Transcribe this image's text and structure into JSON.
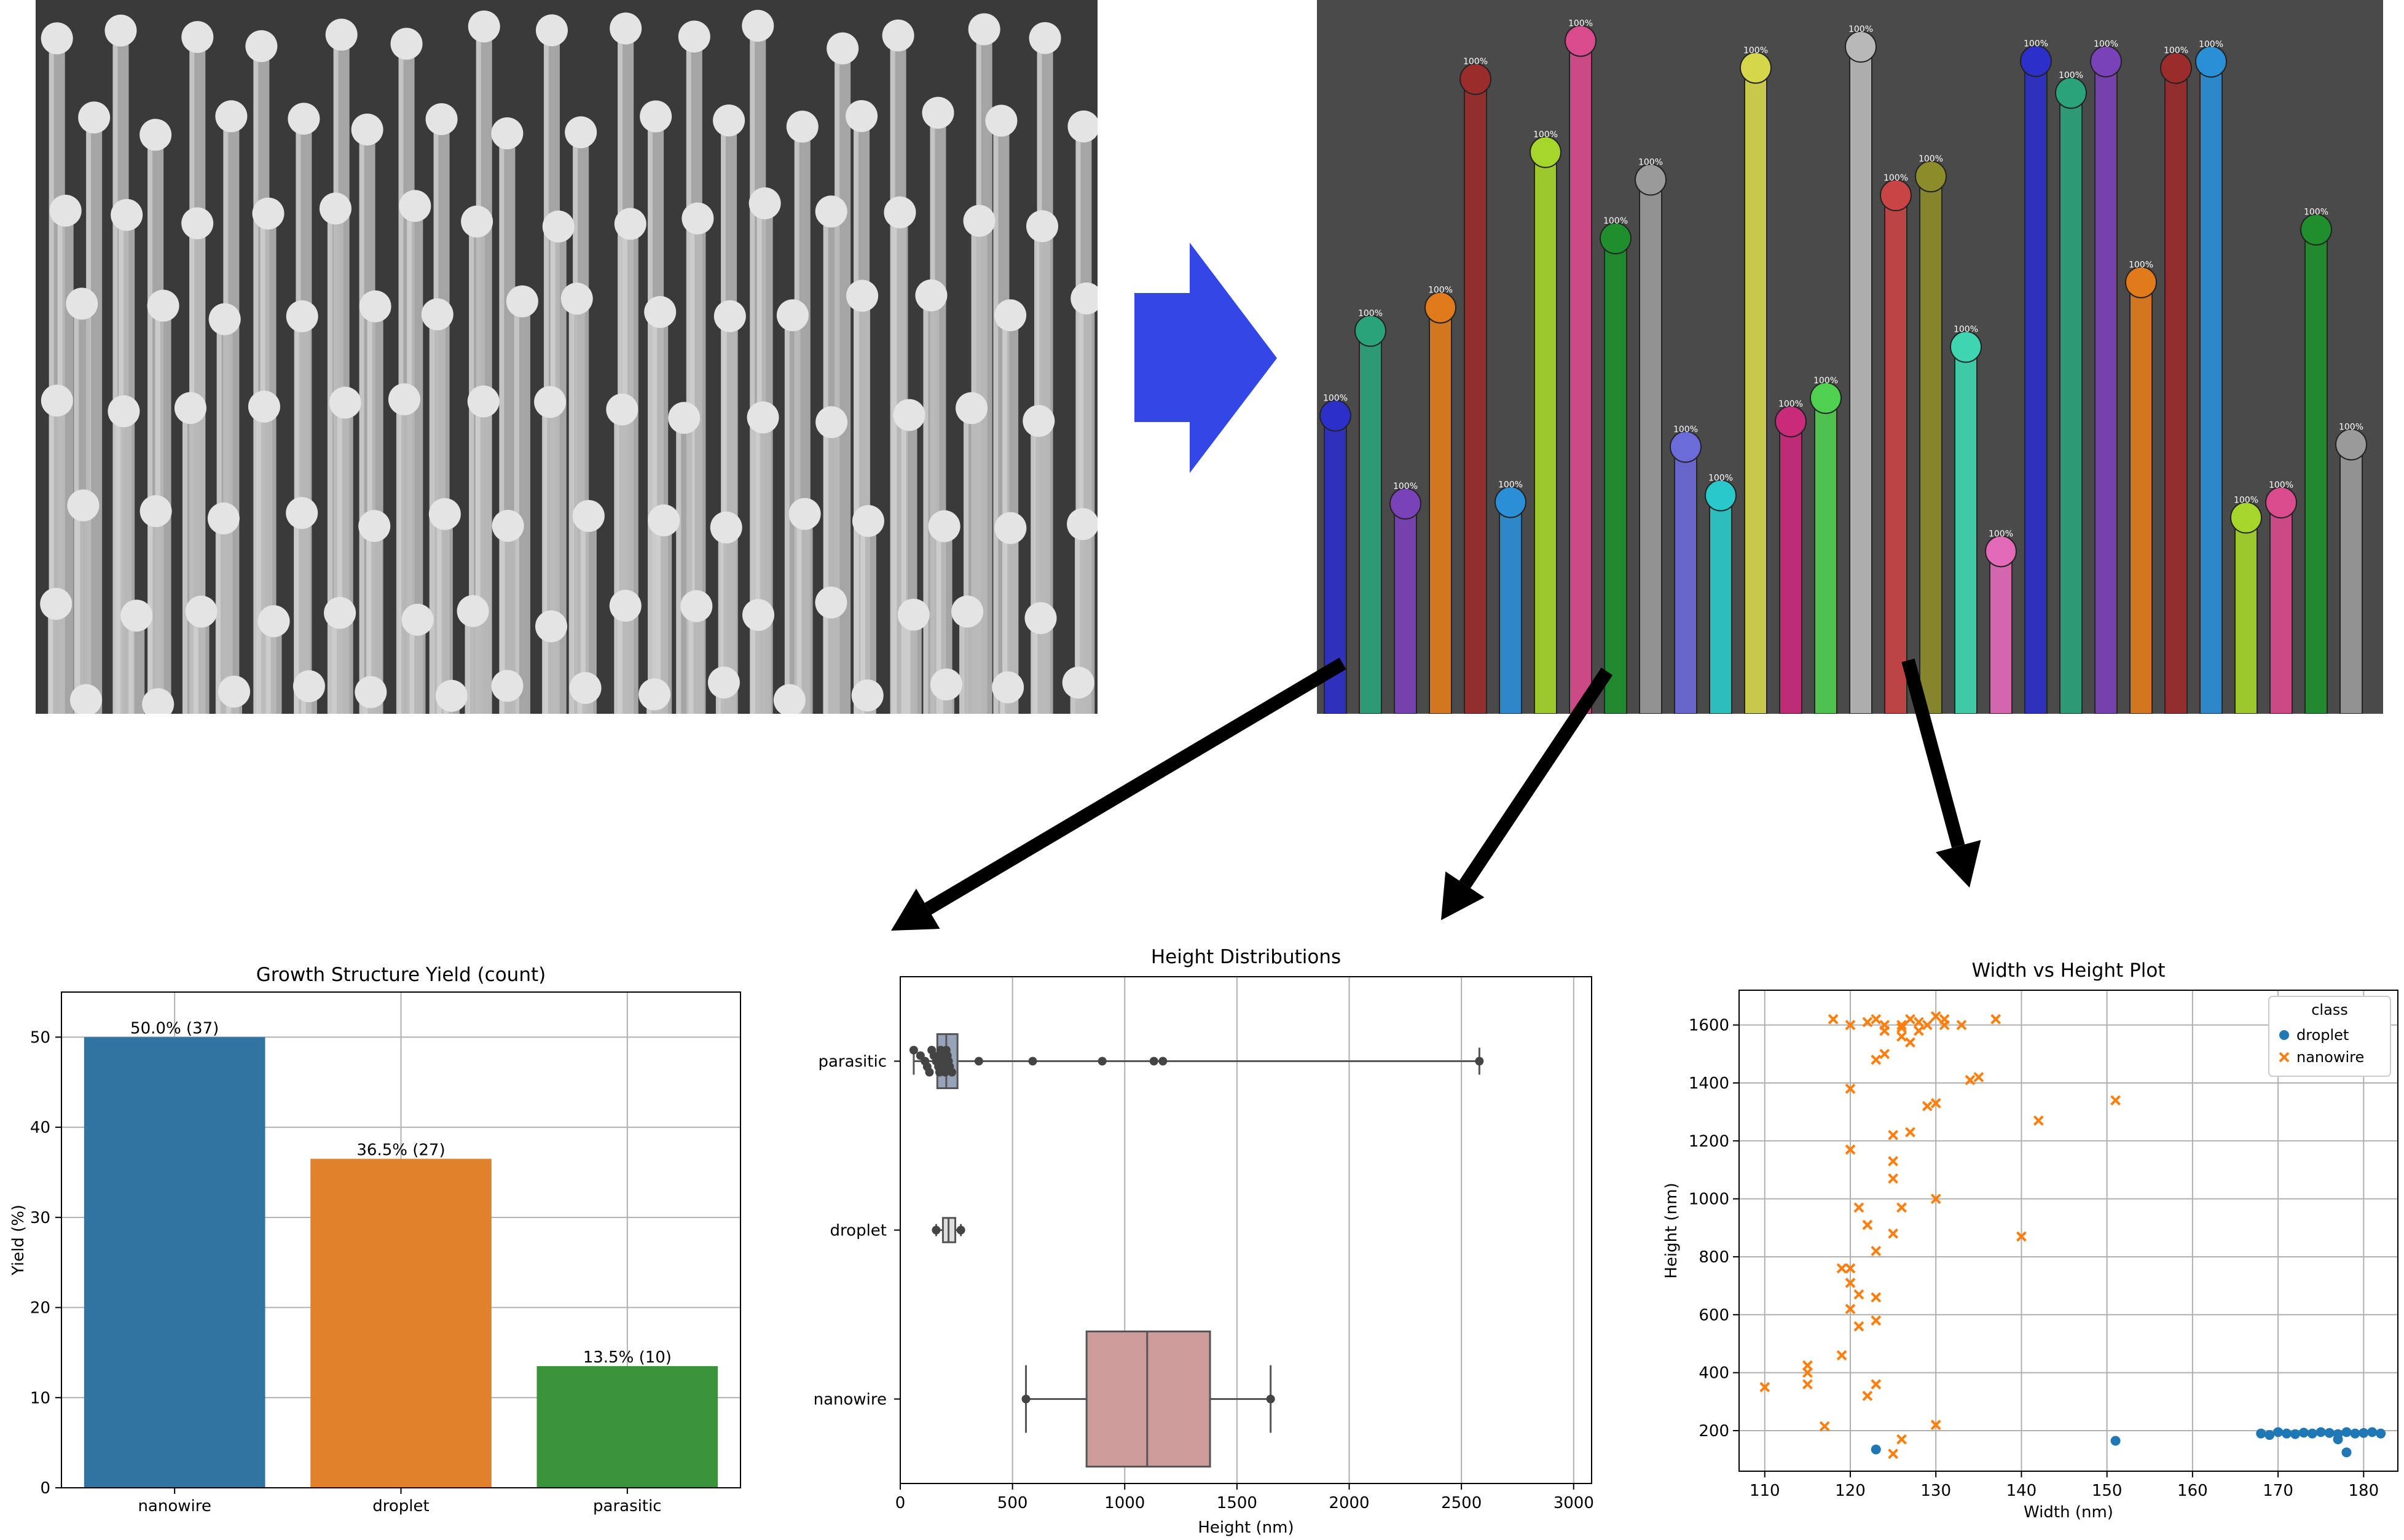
{
  "colors": {
    "sem_background": "#3a3a3a",
    "wire": "#b9b9b9",
    "droplet": "#e4e4e4",
    "process_arrow": "#3347e6",
    "flow_arrow": "#000000",
    "bar_nanowire": "#3274a1",
    "bar_droplet": "#e1812c",
    "bar_parasitic": "#3a923a",
    "box_parasitic": "#97a3b8",
    "box_droplet": "#dedede",
    "box_nanowire": "#cc9b9a",
    "swarm_point": "#444444",
    "scatter_droplet": "#1f77b4",
    "scatter_nanowire": "#ff7f0e"
  },
  "segmentation": {
    "mask_palette": [
      "#2d2fc9",
      "#2aa37a",
      "#7a42b8",
      "#e07a1b",
      "#9b2c2c",
      "#2b8fd6",
      "#a6d62a",
      "#d94b8c",
      "#1e8f2c",
      "#9a9a9a",
      "#6b6bd9",
      "#29c9c9",
      "#d6d64a",
      "#c92a7a",
      "#4fd04f",
      "#b8b8b8",
      "#c94444",
      "#8c8c2a",
      "#3dd6b0",
      "#e36ab8"
    ],
    "score_label": "100%"
  },
  "chart_data": [
    {
      "type": "bar",
      "title": "Growth Structure Yield (count)",
      "xlabel": "",
      "ylabel": "Yield (%)",
      "categories": [
        "nanowire",
        "droplet",
        "parasitic"
      ],
      "values": [
        50.0,
        36.5,
        13.5
      ],
      "data_labels": [
        "50.0% (37)",
        "36.5% (27)",
        "13.5% (10)"
      ],
      "colors": [
        "#3274a1",
        "#e1812c",
        "#3a923a"
      ],
      "ylim": [
        0,
        55
      ],
      "yticks": [
        0,
        10,
        20,
        30,
        40,
        50
      ],
      "grid": true
    },
    {
      "type": "box",
      "orientation": "horizontal",
      "title": "Height Distributions",
      "xlabel": "Height (nm)",
      "ylabel": "",
      "categories": [
        "parasitic",
        "droplet",
        "nanowire"
      ],
      "xlim": [
        0,
        3080
      ],
      "xticks": [
        0,
        500,
        1000,
        1500,
        2000,
        2500,
        3000
      ],
      "grid": true,
      "boxes": [
        {
          "name": "parasitic",
          "whislo": 60,
          "q1": 165,
          "med": 205,
          "q3": 255,
          "whishi": 2580
        },
        {
          "name": "droplet",
          "whislo": 160,
          "q1": 190,
          "med": 215,
          "q3": 245,
          "whishi": 270
        },
        {
          "name": "nanowire",
          "whislo": 560,
          "q1": 830,
          "med": 1100,
          "q3": 1380,
          "whishi": 1650
        }
      ],
      "swarm": {
        "parasitic": [
          60,
          90,
          110,
          120,
          130,
          140,
          150,
          160,
          170,
          175,
          180,
          185,
          190,
          195,
          200,
          205,
          210,
          215,
          220,
          230,
          350,
          590,
          900,
          1130,
          1170,
          2580
        ],
        "droplet": [
          160,
          270
        ],
        "nanowire": [
          560,
          1650
        ]
      }
    },
    {
      "type": "scatter",
      "title": "Width vs Height Plot",
      "xlabel": "Width (nm)",
      "ylabel": "Height (nm)",
      "xlim": [
        107,
        184
      ],
      "ylim": [
        60,
        1720
      ],
      "xticks": [
        110,
        120,
        130,
        140,
        150,
        160,
        170,
        180
      ],
      "yticks": [
        200,
        400,
        600,
        800,
        1000,
        1200,
        1400,
        1600
      ],
      "grid": true,
      "legend": {
        "title": "class",
        "placement": "top-right"
      },
      "series": [
        {
          "name": "droplet",
          "marker": "circle",
          "points": [
            [
              123,
              135
            ],
            [
              151,
              165
            ],
            [
              168,
              190
            ],
            [
              169,
              185
            ],
            [
              170,
              195
            ],
            [
              171,
              190
            ],
            [
              172,
              188
            ],
            [
              173,
              193
            ],
            [
              174,
              190
            ],
            [
              175,
              195
            ],
            [
              176,
              192
            ],
            [
              177,
              170
            ],
            [
              177,
              188
            ],
            [
              178,
              195
            ],
            [
              178,
              125
            ],
            [
              179,
              190
            ],
            [
              180,
              192
            ],
            [
              181,
              195
            ],
            [
              182,
              190
            ]
          ]
        },
        {
          "name": "nanowire",
          "marker": "x",
          "points": [
            [
              110,
              350
            ],
            [
              115,
              425
            ],
            [
              115,
              400
            ],
            [
              115,
              360
            ],
            [
              117,
              215
            ],
            [
              118,
              1620
            ],
            [
              119,
              760
            ],
            [
              119,
              460
            ],
            [
              120,
              1380
            ],
            [
              120,
              1170
            ],
            [
              120,
              1600
            ],
            [
              120,
              760
            ],
            [
              120,
              710
            ],
            [
              120,
              620
            ],
            [
              121,
              970
            ],
            [
              121,
              670
            ],
            [
              121,
              560
            ],
            [
              122,
              910
            ],
            [
              122,
              320
            ],
            [
              122,
              1610
            ],
            [
              123,
              820
            ],
            [
              123,
              660
            ],
            [
              123,
              580
            ],
            [
              123,
              360
            ],
            [
              123,
              1480
            ],
            [
              123,
              1620
            ],
            [
              124,
              1580
            ],
            [
              124,
              1500
            ],
            [
              124,
              1600
            ],
            [
              125,
              1070
            ],
            [
              125,
              880
            ],
            [
              125,
              1220
            ],
            [
              125,
              1130
            ],
            [
              125,
              120
            ],
            [
              126,
              970
            ],
            [
              126,
              1560
            ],
            [
              126,
              1590
            ],
            [
              126,
              1600
            ],
            [
              126,
              170
            ],
            [
              127,
              1230
            ],
            [
              127,
              1540
            ],
            [
              127,
              1620
            ],
            [
              128,
              1580
            ],
            [
              128,
              1610
            ],
            [
              129,
              1320
            ],
            [
              129,
              1600
            ],
            [
              130,
              1000
            ],
            [
              130,
              1630
            ],
            [
              130,
              1330
            ],
            [
              130,
              220
            ],
            [
              131,
              1600
            ],
            [
              131,
              1620
            ],
            [
              133,
              1600
            ],
            [
              134,
              1410
            ],
            [
              135,
              1420
            ],
            [
              137,
              1620
            ],
            [
              140,
              870
            ],
            [
              142,
              1270
            ],
            [
              151,
              1340
            ]
          ]
        }
      ]
    }
  ]
}
